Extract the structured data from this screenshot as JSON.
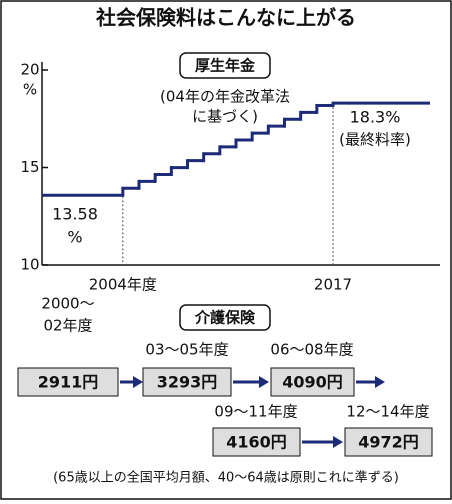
{
  "title": "社会保険料はこんなに上がる",
  "chart_data": {
    "type": "step",
    "title": "厚生年金",
    "x": [
      1999,
      2004,
      2005,
      2006,
      2007,
      2008,
      2009,
      2010,
      2011,
      2012,
      2013,
      2014,
      2015,
      2016,
      2017
    ],
    "values": [
      13.58,
      13.934,
      14.288,
      14.642,
      14.996,
      15.35,
      15.704,
      16.058,
      16.412,
      16.766,
      17.12,
      17.474,
      17.828,
      18.182,
      18.3
    ],
    "color": "#1c2a78",
    "xlim": [
      1999,
      2023
    ],
    "ylim": [
      10,
      20
    ],
    "xticks": [
      {
        "value": 2004,
        "label": "2004年度"
      },
      2017
    ],
    "yticks": [
      10,
      15,
      20
    ],
    "y_unit": "%",
    "annotations": [
      "(04年の年金改革法",
      "に基づく)",
      "13.58",
      "%",
      "18.3%",
      "(最終料率)"
    ]
  },
  "kaigo": {
    "title": "介護保険",
    "items": [
      {
        "period": [
          "2000〜",
          "02年度"
        ],
        "amount": "2911円"
      },
      {
        "period": [
          "03〜05年度"
        ],
        "amount": "3293円"
      },
      {
        "period": [
          "06〜08年度"
        ],
        "amount": "4090円"
      },
      {
        "period": [
          "09〜11年度"
        ],
        "amount": "4160円"
      },
      {
        "period": [
          "12〜14年度"
        ],
        "amount": "4972円"
      }
    ]
  },
  "footnote": "(65歳以上の全国平均月額、40〜64歳は原則これに準ずる)"
}
